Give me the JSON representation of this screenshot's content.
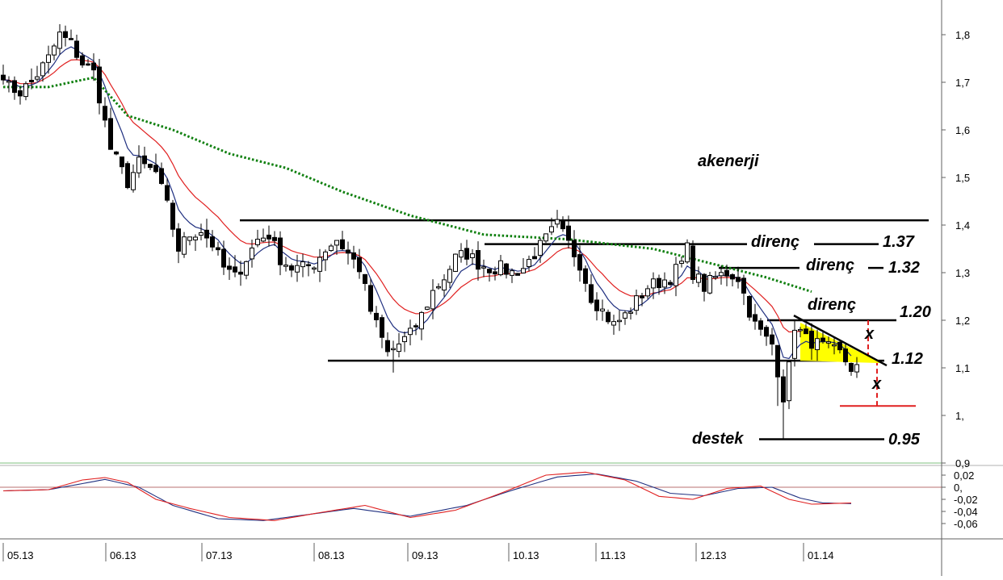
{
  "chart_data": {
    "type": "candlestick",
    "title": "akenerji",
    "price_axis": {
      "min": 0.9,
      "max": 1.9,
      "ticks": [
        {
          "value": 1.8,
          "label": "1,8"
        },
        {
          "value": 1.7,
          "label": "1,7"
        },
        {
          "value": 1.6,
          "label": "1,6"
        },
        {
          "value": 1.5,
          "label": "1,5"
        },
        {
          "value": 1.4,
          "label": "1,4"
        },
        {
          "value": 1.3,
          "label": "1,3"
        },
        {
          "value": 1.2,
          "label": "1,2"
        },
        {
          "value": 1.1,
          "label": "1,1"
        },
        {
          "value": 1.0,
          "label": "1,"
        },
        {
          "value": 0.9,
          "label": "0,9"
        }
      ]
    },
    "oscillator_axis": {
      "min": -0.07,
      "max": 0.035,
      "ticks": [
        {
          "value": 0.02,
          "label": "0,02"
        },
        {
          "value": 0.0,
          "label": "0,"
        },
        {
          "value": -0.02,
          "label": "-0,02"
        },
        {
          "value": -0.04,
          "label": "-0,04"
        },
        {
          "value": -0.06,
          "label": "-0,06"
        }
      ]
    },
    "months": [
      "05.13",
      "06.13",
      "07.13",
      "08.13",
      "09.13",
      "10.13",
      "11.13",
      "12.13",
      "01.14"
    ],
    "annotations": {
      "resistance_label": "direnç",
      "support_label": "destek",
      "x_mark": "x",
      "level_137": "1.37",
      "level_132": "1.32",
      "level_120": "1.20",
      "level_112": "1.12",
      "level_095": "0.95"
    },
    "levels": {
      "top_horizontal": 1.41,
      "resistance_1": 1.36,
      "resistance_2": 1.31,
      "resistance_3": 1.2,
      "support_112": 1.115,
      "target": 1.02,
      "support_095": 0.95
    },
    "close_anchors": [
      [
        0,
        1.72
      ],
      [
        1,
        1.69
      ],
      [
        3,
        1.68
      ],
      [
        5,
        1.7
      ],
      [
        8,
        1.75
      ],
      [
        10,
        1.8
      ],
      [
        12,
        1.78
      ],
      [
        14,
        1.74
      ],
      [
        16,
        1.72
      ],
      [
        17,
        1.67
      ],
      [
        19,
        1.56
      ],
      [
        22,
        1.49
      ],
      [
        24,
        1.53
      ],
      [
        27,
        1.51
      ],
      [
        29,
        1.44
      ],
      [
        31,
        1.35
      ],
      [
        33,
        1.38
      ],
      [
        35,
        1.39
      ],
      [
        37,
        1.36
      ],
      [
        39,
        1.31
      ],
      [
        41,
        1.29
      ],
      [
        43,
        1.33
      ],
      [
        45,
        1.37
      ],
      [
        47,
        1.38
      ],
      [
        49,
        1.33
      ],
      [
        51,
        1.31
      ],
      [
        53,
        1.31
      ],
      [
        55,
        1.32
      ],
      [
        57,
        1.35
      ],
      [
        59,
        1.37
      ],
      [
        61,
        1.34
      ],
      [
        63,
        1.31
      ],
      [
        65,
        1.22
      ],
      [
        67,
        1.16
      ],
      [
        68,
        1.13
      ],
      [
        70,
        1.15
      ],
      [
        72,
        1.17
      ],
      [
        74,
        1.21
      ],
      [
        76,
        1.26
      ],
      [
        78,
        1.29
      ],
      [
        80,
        1.33
      ],
      [
        82,
        1.34
      ],
      [
        84,
        1.32
      ],
      [
        86,
        1.31
      ],
      [
        88,
        1.31
      ],
      [
        90,
        1.3
      ],
      [
        92,
        1.31
      ],
      [
        94,
        1.34
      ],
      [
        96,
        1.37
      ],
      [
        98,
        1.4
      ],
      [
        100,
        1.36
      ],
      [
        102,
        1.32
      ],
      [
        104,
        1.25
      ],
      [
        106,
        1.22
      ],
      [
        108,
        1.19
      ],
      [
        110,
        1.21
      ],
      [
        112,
        1.24
      ],
      [
        114,
        1.27
      ],
      [
        116,
        1.28
      ],
      [
        118,
        1.29
      ],
      [
        120,
        1.32
      ],
      [
        121,
        1.35
      ],
      [
        122,
        1.3
      ],
      [
        124,
        1.27
      ],
      [
        126,
        1.29
      ],
      [
        128,
        1.3
      ],
      [
        130,
        1.29
      ],
      [
        132,
        1.22
      ],
      [
        133,
        1.19
      ],
      [
        135,
        1.16
      ],
      [
        136,
        1.15
      ],
      [
        138,
        1.04
      ],
      [
        139,
        1.1
      ],
      [
        140,
        1.19
      ],
      [
        142,
        1.16
      ],
      [
        144,
        1.15
      ],
      [
        146,
        1.14
      ],
      [
        148,
        1.13
      ],
      [
        150,
        1.1
      ]
    ],
    "sma50_anchors": [
      [
        0,
        1.69
      ],
      [
        8,
        1.69
      ],
      [
        16,
        1.71
      ],
      [
        22,
        1.63
      ],
      [
        30,
        1.6
      ],
      [
        40,
        1.55
      ],
      [
        50,
        1.52
      ],
      [
        60,
        1.47
      ],
      [
        72,
        1.42
      ],
      [
        85,
        1.38
      ],
      [
        100,
        1.37
      ],
      [
        115,
        1.35
      ],
      [
        125,
        1.32
      ],
      [
        135,
        1.29
      ],
      [
        143,
        1.26
      ]
    ],
    "oscillator_macd": [
      [
        0,
        -0.006
      ],
      [
        8,
        -0.004
      ],
      [
        14,
        0.012
      ],
      [
        18,
        0.016
      ],
      [
        22,
        0.008
      ],
      [
        27,
        -0.02
      ],
      [
        33,
        -0.035
      ],
      [
        40,
        -0.05
      ],
      [
        48,
        -0.055
      ],
      [
        56,
        -0.042
      ],
      [
        64,
        -0.03
      ],
      [
        72,
        -0.05
      ],
      [
        80,
        -0.038
      ],
      [
        88,
        -0.01
      ],
      [
        96,
        0.02
      ],
      [
        103,
        0.025
      ],
      [
        110,
        0.012
      ],
      [
        116,
        -0.015
      ],
      [
        122,
        -0.02
      ],
      [
        128,
        -0.002
      ],
      [
        134,
        0.002
      ],
      [
        139,
        -0.02
      ],
      [
        143,
        -0.028
      ],
      [
        150,
        -0.026
      ]
    ],
    "oscillator_signal": [
      [
        0,
        -0.006
      ],
      [
        8,
        -0.004
      ],
      [
        14,
        0.006
      ],
      [
        18,
        0.013
      ],
      [
        24,
        0.0
      ],
      [
        30,
        -0.03
      ],
      [
        38,
        -0.052
      ],
      [
        46,
        -0.055
      ],
      [
        54,
        -0.045
      ],
      [
        62,
        -0.035
      ],
      [
        72,
        -0.048
      ],
      [
        82,
        -0.03
      ],
      [
        90,
        -0.005
      ],
      [
        98,
        0.017
      ],
      [
        105,
        0.022
      ],
      [
        112,
        0.01
      ],
      [
        118,
        -0.01
      ],
      [
        124,
        -0.014
      ],
      [
        130,
        -0.002
      ],
      [
        136,
        0.0
      ],
      [
        141,
        -0.018
      ],
      [
        145,
        -0.026
      ],
      [
        150,
        -0.027
      ]
    ]
  }
}
